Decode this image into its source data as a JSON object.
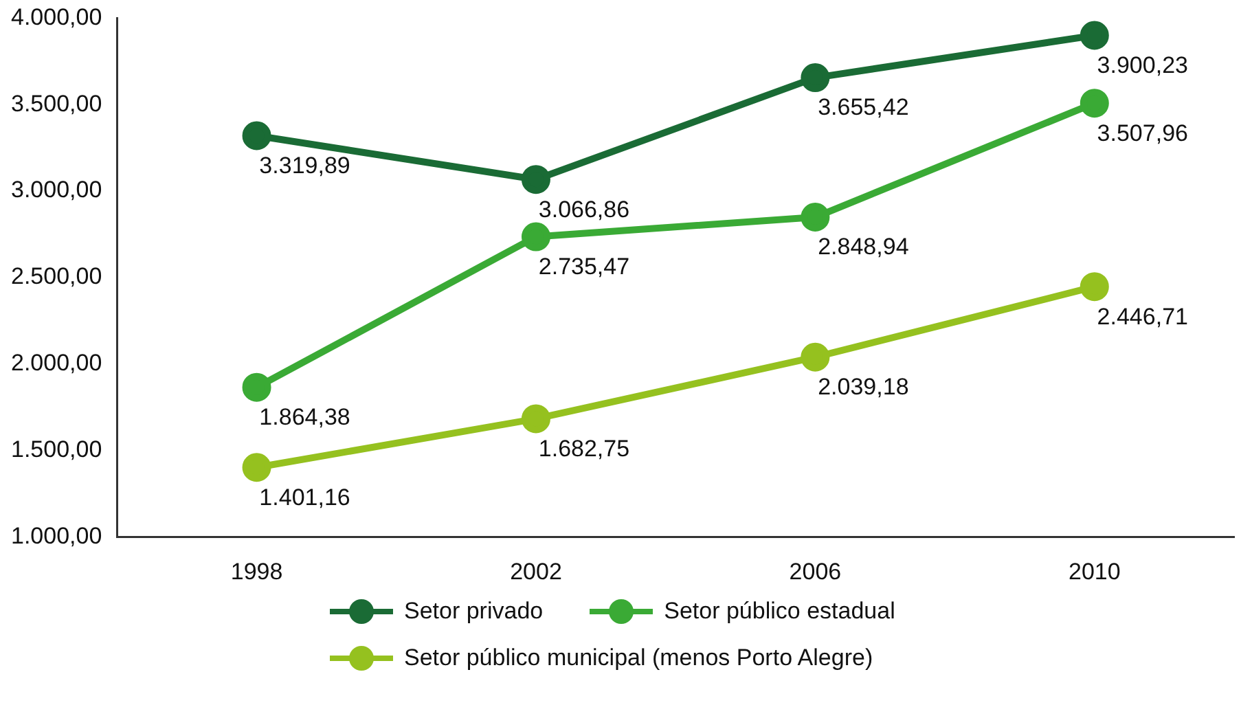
{
  "chart_data": {
    "type": "line",
    "categories": [
      "1998",
      "2002",
      "2006",
      "2010"
    ],
    "series": [
      {
        "name": "Setor privado",
        "color": "#1a6b35",
        "values": [
          3319.89,
          3066.86,
          3655.42,
          3900.23
        ],
        "value_labels": [
          "3.319,89",
          "3.066,86",
          "3.655,42",
          "3.900,23"
        ]
      },
      {
        "name": "Setor público estadual",
        "color": "#3aaa35",
        "values": [
          1864.38,
          2735.47,
          2848.94,
          3507.96
        ],
        "value_labels": [
          "1.864,38",
          "2.735,47",
          "2.848,94",
          "3.507,96"
        ]
      },
      {
        "name": "Setor público municipal (menos Porto Alegre)",
        "color": "#95c11f",
        "values": [
          1401.16,
          1682.75,
          2039.18,
          2446.71
        ],
        "value_labels": [
          "1.401,16",
          "1.682,75",
          "2.039,18",
          "2.446,71"
        ]
      }
    ],
    "ylim": [
      1000,
      4000
    ],
    "yticks": [
      {
        "value": 1000,
        "label": "1.000,00"
      },
      {
        "value": 1500,
        "label": "1.500,00"
      },
      {
        "value": 2000,
        "label": "2.000,00"
      },
      {
        "value": 2500,
        "label": "2.500,00"
      },
      {
        "value": 3000,
        "label": "3.000,00"
      },
      {
        "value": 3500,
        "label": "3.500,00"
      },
      {
        "value": 4000,
        "label": "4.000,00"
      }
    ],
    "grid": false,
    "legend": "bottom",
    "marker": "circle",
    "line_style": "solid"
  }
}
